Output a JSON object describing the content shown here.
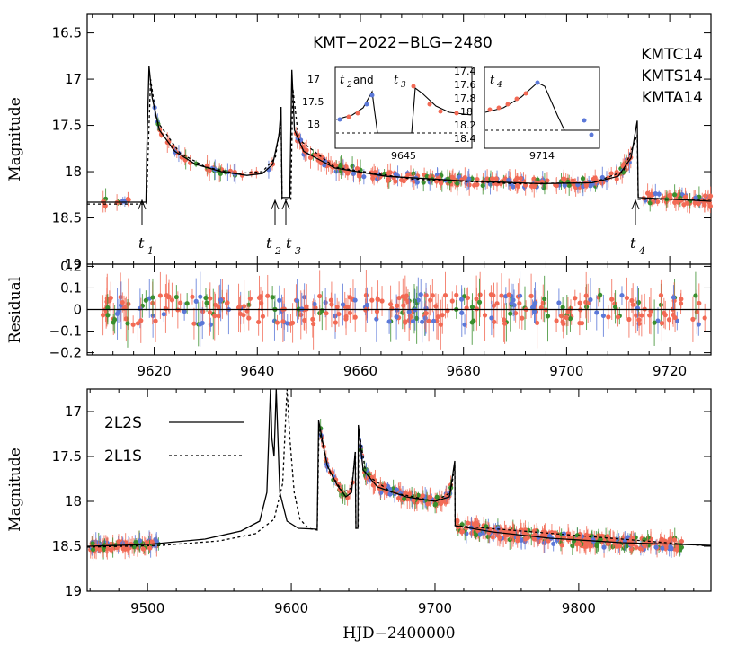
{
  "chart_data": [
    {
      "type": "scatter",
      "panel": "light-curve-zoom",
      "title": "KMT−2022−BLG−2480",
      "ylabel": "Magnitude",
      "xlim": [
        9607,
        9728
      ],
      "ylim": [
        19.0,
        16.3
      ],
      "yticks": [
        "16.5",
        "17",
        "17.5",
        "18",
        "18.5",
        "19"
      ],
      "ytick_values": [
        16.5,
        17,
        17.5,
        18,
        18.5,
        19
      ],
      "legend": {
        "placement": "top-right",
        "entries": [
          {
            "name": "KMTC14",
            "color": "#f26a55"
          },
          {
            "name": "KMTS14",
            "color": "#5b78d8"
          },
          {
            "name": "KMTA14",
            "color": "#3a8f2e"
          }
        ]
      },
      "annotations": [
        {
          "label": "t",
          "sub": "1",
          "x": 9618.5
        },
        {
          "label": "t",
          "sub": "2",
          "x": 9644.6
        },
        {
          "label": "t",
          "sub": "3",
          "x": 9646.6
        },
        {
          "label": "t",
          "sub": "4",
          "x": 9713.9
        }
      ],
      "model_2L2S": [
        [
          9607,
          18.33
        ],
        [
          9618.4,
          18.33
        ],
        [
          9618.6,
          17.7
        ],
        [
          9619.0,
          16.86
        ],
        [
          9619.6,
          17.2
        ],
        [
          9621,
          17.55
        ],
        [
          9624,
          17.78
        ],
        [
          9628,
          17.92
        ],
        [
          9633,
          18.0
        ],
        [
          9638,
          18.04
        ],
        [
          9641,
          18.02
        ],
        [
          9643,
          17.92
        ],
        [
          9644.2,
          17.6
        ],
        [
          9644.6,
          17.3
        ],
        [
          9644.8,
          18.28
        ],
        [
          9646.3,
          18.28
        ],
        [
          9646.7,
          16.9
        ],
        [
          9647.2,
          17.55
        ],
        [
          9649,
          17.78
        ],
        [
          9655,
          17.96
        ],
        [
          9665,
          18.05
        ],
        [
          9680,
          18.1
        ],
        [
          9695,
          18.13
        ],
        [
          9705,
          18.12
        ],
        [
          9710,
          18.05
        ],
        [
          9712.5,
          17.85
        ],
        [
          9713.7,
          17.45
        ],
        [
          9713.9,
          18.28
        ],
        [
          9728,
          18.32
        ]
      ],
      "model_2L1S": [
        [
          9607,
          18.35
        ],
        [
          9618.5,
          18.35
        ],
        [
          9619.3,
          17.0
        ],
        [
          9620.5,
          17.45
        ],
        [
          9625,
          17.8
        ],
        [
          9630,
          17.95
        ],
        [
          9636,
          18.02
        ],
        [
          9641,
          18.0
        ],
        [
          9643.5,
          17.85
        ],
        [
          9644.6,
          17.45
        ],
        [
          9644.8,
          18.3
        ],
        [
          9646.5,
          18.3
        ],
        [
          9646.9,
          17.1
        ],
        [
          9648,
          17.65
        ],
        [
          9655,
          17.95
        ],
        [
          9670,
          18.08
        ],
        [
          9690,
          18.13
        ],
        [
          9705,
          18.12
        ],
        [
          9711,
          18.0
        ],
        [
          9713.7,
          17.6
        ],
        [
          9713.9,
          18.3
        ],
        [
          9728,
          18.3
        ]
      ],
      "insets": [
        {
          "label_parts": [
            "t",
            "2",
            " and ",
            "t",
            "3"
          ],
          "xtick_label": "9645",
          "yticks": [
            "17",
            "17.5",
            "18"
          ]
        },
        {
          "label_parts": [
            "t",
            "4"
          ],
          "xtick_label": "9714",
          "yticks": [
            "17.4",
            "17.6",
            "17.8",
            "18",
            "18.2",
            "18.4"
          ]
        }
      ]
    },
    {
      "type": "scatter",
      "panel": "residual",
      "ylabel": "Residual",
      "xlim": [
        9607,
        9728
      ],
      "ylim": [
        -0.21,
        0.21
      ],
      "yticks": [
        "0.2",
        "0.1",
        "0",
        "−0.1",
        "−0.2"
      ],
      "ytick_values": [
        0.2,
        0.1,
        0,
        -0.1,
        -0.2
      ],
      "xticks": [
        "9620",
        "9640",
        "9660",
        "9680",
        "9700",
        "9720"
      ],
      "xtick_values": [
        9620,
        9640,
        9660,
        9680,
        9700,
        9720
      ]
    },
    {
      "type": "scatter",
      "panel": "light-curve-full",
      "xlabel": "HJD−2400000",
      "ylabel": "Magnitude",
      "xlim": [
        9458,
        9892
      ],
      "ylim": [
        19.0,
        16.75
      ],
      "yticks": [
        "17",
        "17.5",
        "18",
        "18.5",
        "19"
      ],
      "ytick_values": [
        17,
        17.5,
        18,
        18.5,
        19
      ],
      "xticks": [
        "9500",
        "9600",
        "9700",
        "9800"
      ],
      "xtick_values": [
        9500,
        9600,
        9700,
        9800
      ],
      "legend": {
        "placement": "top-left",
        "entries": [
          {
            "name": "2L2S",
            "style": "solid"
          },
          {
            "name": "2L1S",
            "style": "dotted"
          }
        ]
      },
      "model_2L2S": [
        [
          9458,
          18.5
        ],
        [
          9500,
          18.48
        ],
        [
          9540,
          18.42
        ],
        [
          9565,
          18.33
        ],
        [
          9578,
          18.22
        ],
        [
          9583,
          17.9
        ],
        [
          9585.5,
          16.75
        ],
        [
          9586.5,
          17.3
        ],
        [
          9588,
          17.5
        ],
        [
          9589.5,
          16.75
        ],
        [
          9592,
          17.9
        ],
        [
          9597,
          18.22
        ],
        [
          9605,
          18.3
        ],
        [
          9618,
          18.31
        ],
        [
          9619,
          17.1
        ],
        [
          9625,
          17.6
        ],
        [
          9632,
          17.82
        ],
        [
          9638,
          17.95
        ],
        [
          9642,
          17.9
        ],
        [
          9644.5,
          17.45
        ],
        [
          9645,
          18.3
        ],
        [
          9646.3,
          18.3
        ],
        [
          9646.7,
          17.15
        ],
        [
          9650,
          17.65
        ],
        [
          9660,
          17.84
        ],
        [
          9680,
          17.95
        ],
        [
          9700,
          18.0
        ],
        [
          9710,
          17.95
        ],
        [
          9713.8,
          17.55
        ],
        [
          9714,
          18.27
        ],
        [
          9740,
          18.34
        ],
        [
          9780,
          18.41
        ],
        [
          9830,
          18.46
        ],
        [
          9892,
          18.49
        ]
      ],
      "model_2L1S": [
        [
          9458,
          18.51
        ],
        [
          9510,
          18.49
        ],
        [
          9550,
          18.44
        ],
        [
          9575,
          18.36
        ],
        [
          9588,
          18.2
        ],
        [
          9594,
          17.8
        ],
        [
          9597,
          16.75
        ],
        [
          9599,
          17.3
        ],
        [
          9602,
          17.9
        ],
        [
          9606,
          18.2
        ],
        [
          9612,
          18.3
        ],
        [
          9618,
          18.32
        ],
        [
          9619.3,
          17.2
        ],
        [
          9626,
          17.65
        ],
        [
          9636,
          17.9
        ],
        [
          9642,
          17.85
        ],
        [
          9644.6,
          17.45
        ],
        [
          9645,
          18.3
        ],
        [
          9646.5,
          18.3
        ],
        [
          9646.9,
          17.2
        ],
        [
          9652,
          17.7
        ],
        [
          9670,
          17.9
        ],
        [
          9700,
          18.0
        ],
        [
          9711,
          17.9
        ],
        [
          9713.8,
          17.6
        ],
        [
          9714,
          18.27
        ],
        [
          9892,
          18.5
        ]
      ]
    }
  ]
}
